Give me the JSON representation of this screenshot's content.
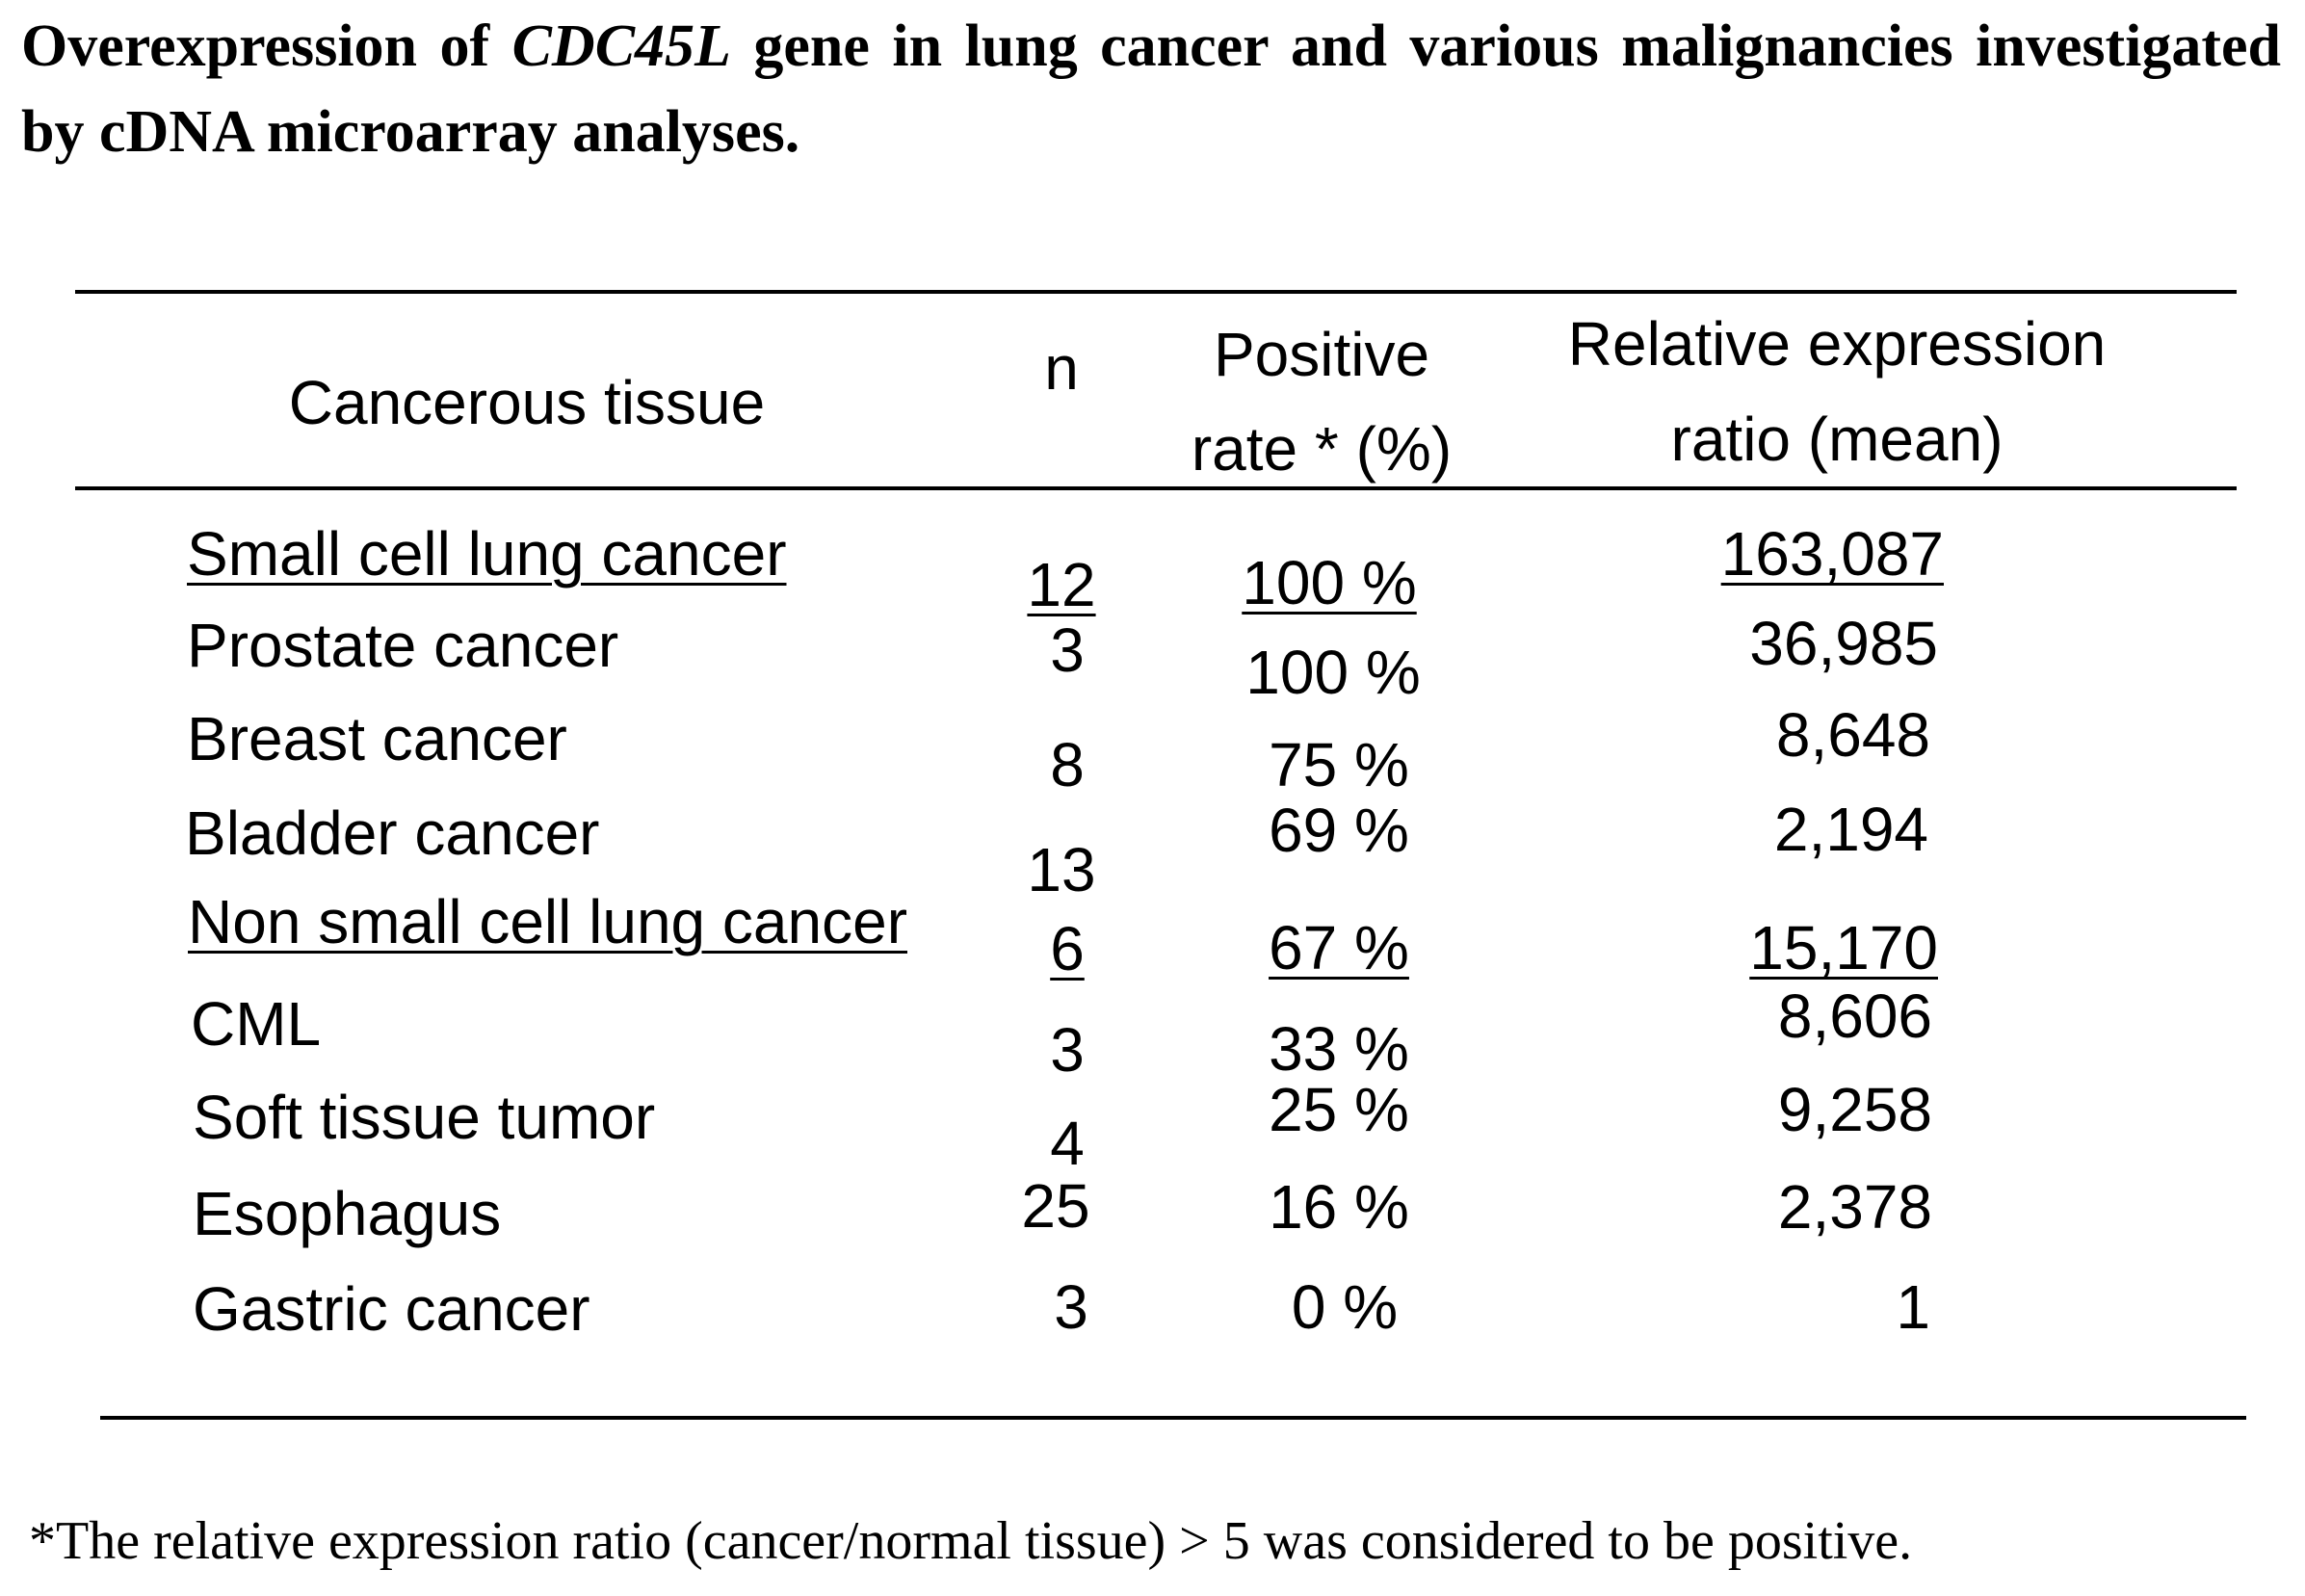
{
  "title": {
    "part1": "Overexpression of ",
    "gene": "CDC45L",
    "part2": " gene in lung cancer and various malignancies investigated by cDNA microarray analyses."
  },
  "table": {
    "headers": {
      "tissue": "Cancerous tissue",
      "n": "n",
      "positive_rate_line1": "Positive",
      "positive_rate_line2": "rate * (%)",
      "ratio_line1": "Relative expression",
      "ratio_line2": "ratio (mean)"
    },
    "rows": [
      {
        "tissue": "Small cell lung cancer",
        "n": "12",
        "rate": "100 %",
        "ratio": "163,087"
      },
      {
        "tissue": "Prostate cancer",
        "n": "3",
        "rate": "100 %",
        "ratio": "36,985"
      },
      {
        "tissue": "Breast cancer",
        "n": "8",
        "rate": "75 %",
        "ratio": "8,648"
      },
      {
        "tissue": "Bladder cancer",
        "n": "13",
        "rate": "69 %",
        "ratio": "2,194"
      },
      {
        "tissue": "Non small cell lung cancer",
        "n": "6",
        "rate": "67 %",
        "ratio": "15,170"
      },
      {
        "tissue": "CML",
        "n": "3",
        "rate": "33 %",
        "ratio": "8,606"
      },
      {
        "tissue": "Soft tissue tumor",
        "n": "4",
        "rate": "25 %",
        "ratio": "9,258"
      },
      {
        "tissue": "Esophagus",
        "n": "25",
        "rate": "16 %",
        "ratio": "2,378"
      },
      {
        "tissue": "Gastric cancer",
        "n": "3",
        "rate": "0 %",
        "ratio": "1"
      }
    ]
  },
  "footnote": "*The relative expression ratio (cancer/normal tissue) > 5 was considered to be positive."
}
